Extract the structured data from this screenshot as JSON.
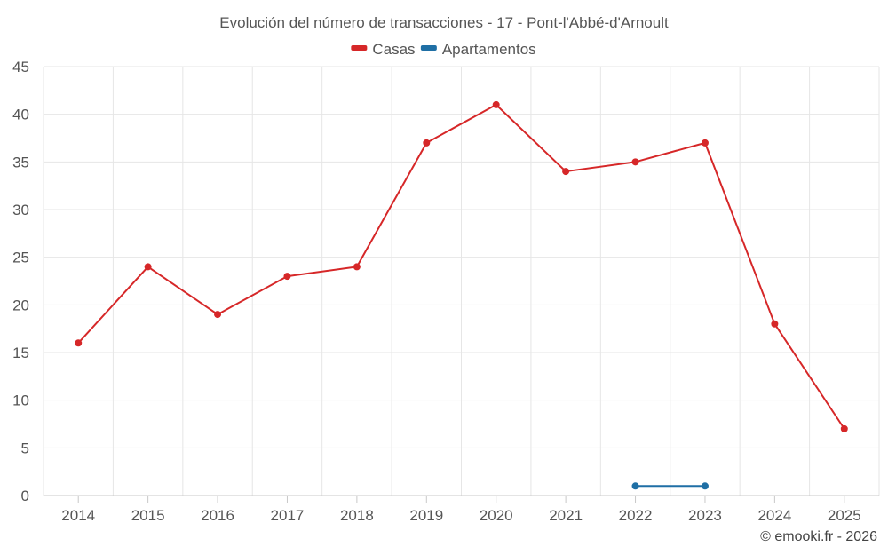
{
  "chart_data": {
    "type": "line",
    "title": "Evolución del número de transacciones - 17 - Pont-l'Abbé-d'Arnoult",
    "xlabel": "",
    "ylabel": "",
    "categories": [
      "2014",
      "2015",
      "2016",
      "2017",
      "2018",
      "2019",
      "2020",
      "2021",
      "2022",
      "2023",
      "2024",
      "2025"
    ],
    "ylim": [
      0,
      45
    ],
    "yticks": [
      0,
      5,
      10,
      15,
      20,
      25,
      30,
      35,
      40,
      45
    ],
    "grid": true,
    "legend_position": "top-center",
    "series": [
      {
        "name": "Casas",
        "color": "#d62728",
        "values": [
          16,
          24,
          19,
          23,
          24,
          37,
          41,
          34,
          35,
          37,
          18,
          7
        ]
      },
      {
        "name": "Apartamentos",
        "color": "#1f6fa5",
        "values": [
          null,
          null,
          null,
          null,
          null,
          null,
          null,
          null,
          1,
          1,
          null,
          null
        ]
      }
    ]
  },
  "credit": "© emooki.fr - 2026"
}
